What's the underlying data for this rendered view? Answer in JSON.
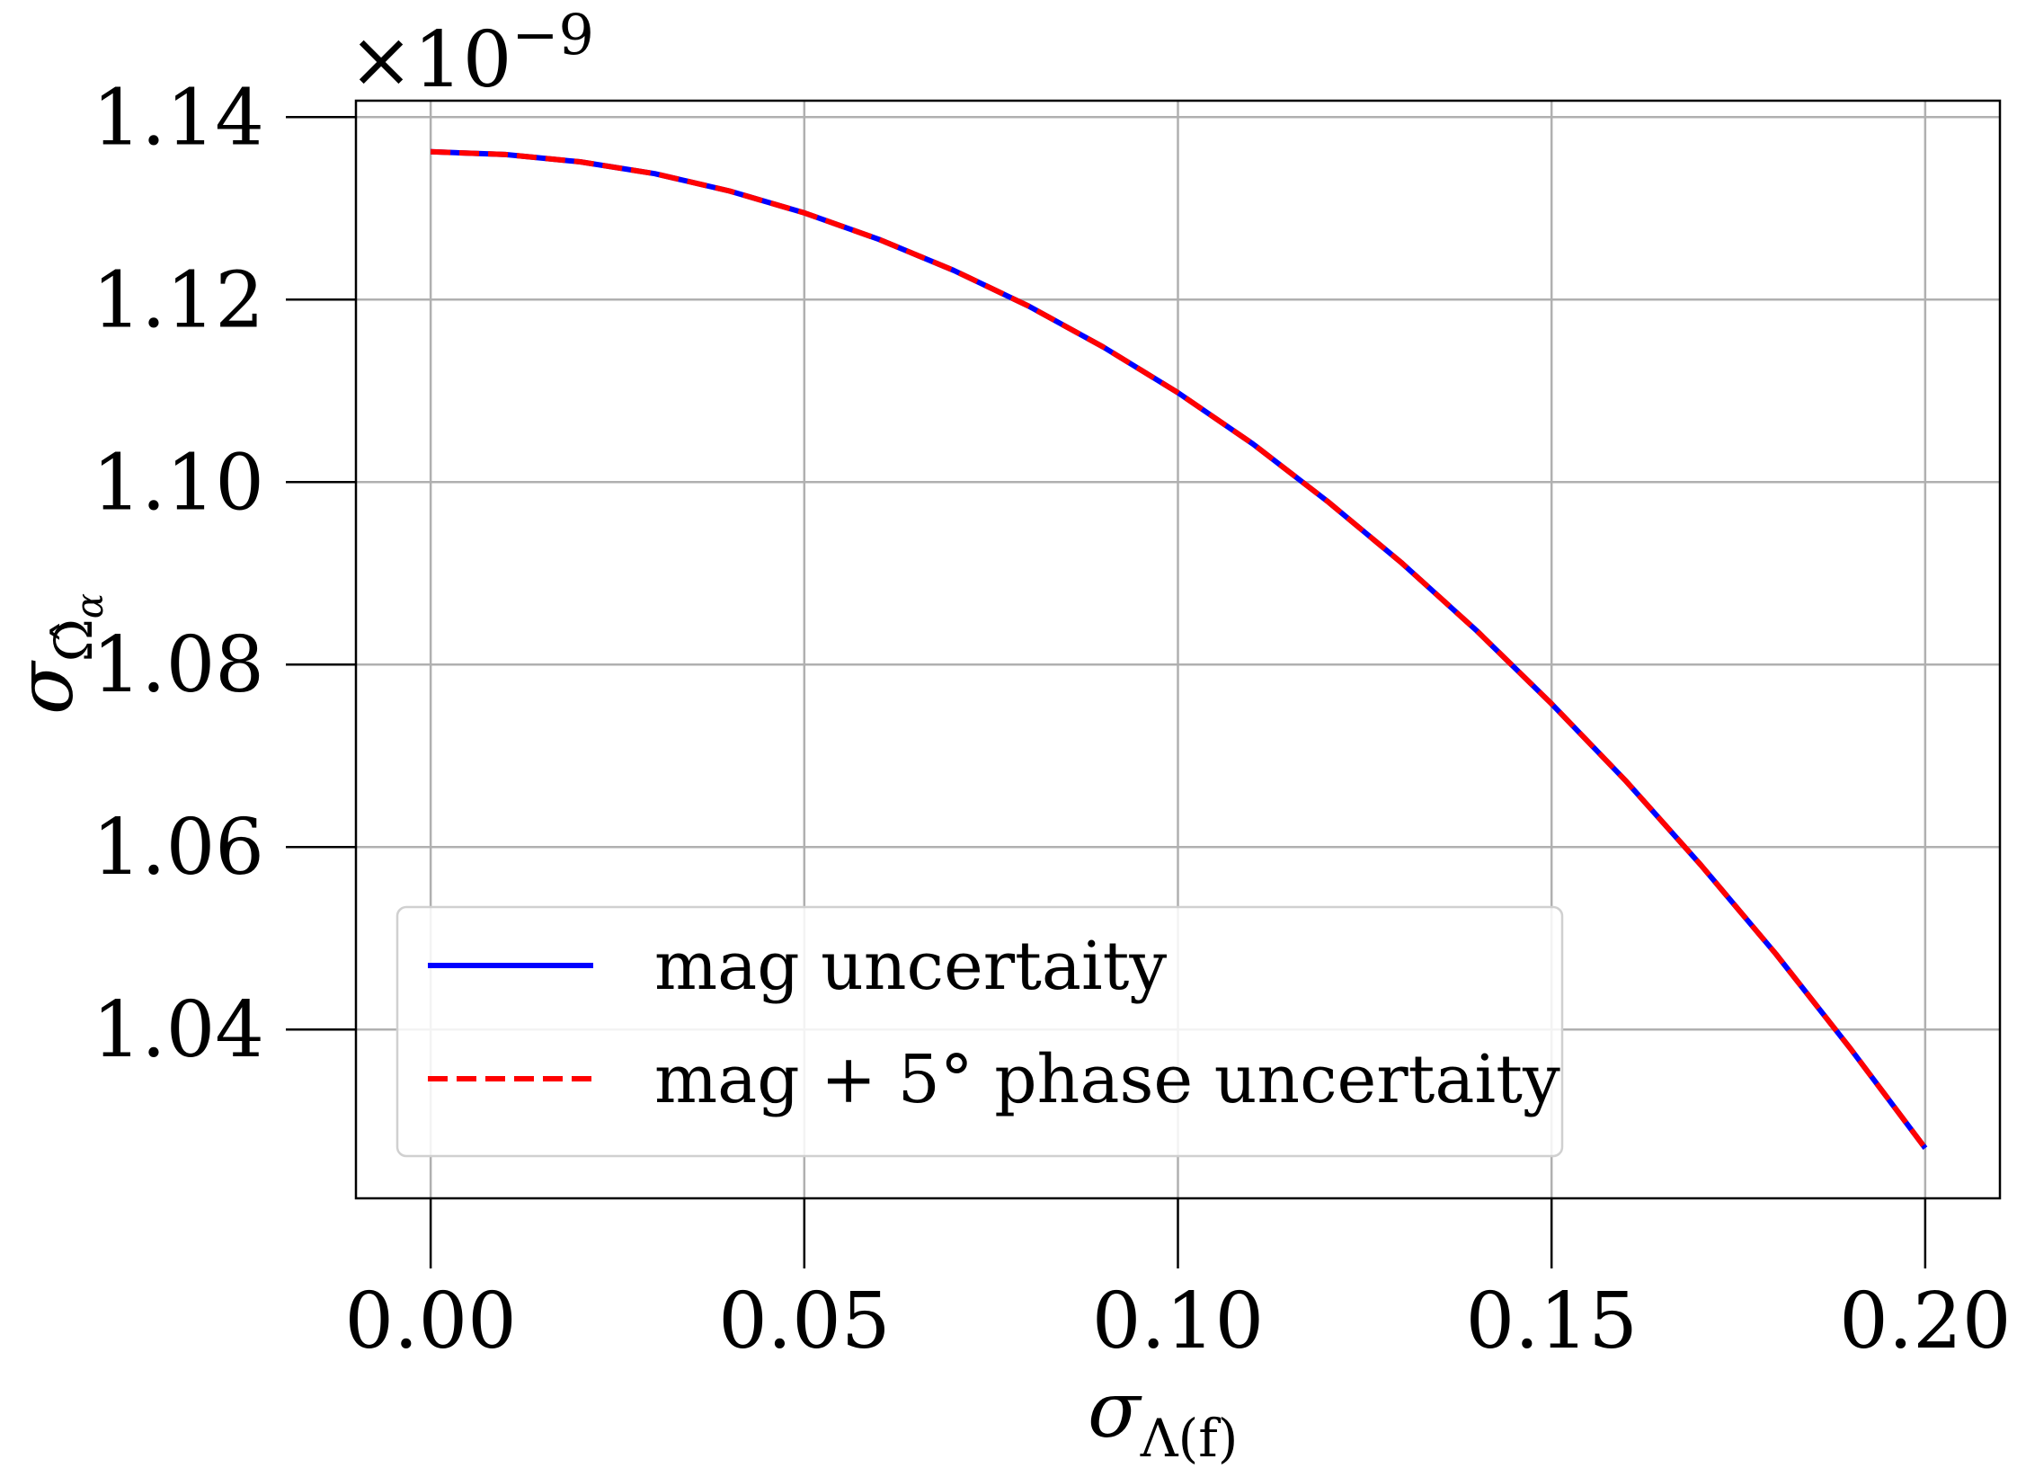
{
  "chart_data": {
    "type": "line",
    "x_multiplier_label": "×10",
    "y_exponent_label": "−9",
    "xlabel_main": "σ",
    "xlabel_sub": "Λ(f)",
    "ylabel_main": "σ",
    "ylabel_sub": "Ω̂",
    "ylabel_subsub": "α",
    "xlim": [
      -0.01,
      0.21
    ],
    "ylim": [
      1.0215,
      1.1418
    ],
    "x_ticks": [
      0.0,
      0.05,
      0.1,
      0.15,
      0.2
    ],
    "x_tick_labels": [
      "0.00",
      "0.05",
      "0.10",
      "0.15",
      "0.20"
    ],
    "y_ticks": [
      1.04,
      1.06,
      1.08,
      1.1,
      1.12,
      1.14
    ],
    "y_tick_labels": [
      "1.04",
      "1.06",
      "1.08",
      "1.10",
      "1.12",
      "1.14"
    ],
    "grid": true,
    "legend_position": "lower-left",
    "x": [
      0.0,
      0.01,
      0.02,
      0.03,
      0.04,
      0.05,
      0.06,
      0.07,
      0.08,
      0.09,
      0.1,
      0.11,
      0.12,
      0.13,
      0.14,
      0.15,
      0.16,
      0.17,
      0.18,
      0.19,
      0.2
    ],
    "series": [
      {
        "name": "mag uncertaity",
        "color": "#0000ff",
        "style": "solid",
        "values": [
          1.1362,
          1.1359,
          1.1351,
          1.1338,
          1.1319,
          1.1295,
          1.1266,
          1.1232,
          1.1193,
          1.1148,
          1.1098,
          1.1042,
          1.0979,
          1.0911,
          1.0837,
          1.0757,
          1.0672,
          1.058,
          1.0483,
          1.0379,
          1.027
        ]
      },
      {
        "name": "mag + 5° phase uncertaity",
        "color": "#ff0000",
        "style": "dashed",
        "values": [
          1.1362,
          1.1359,
          1.1351,
          1.1338,
          1.1319,
          1.1295,
          1.1266,
          1.1232,
          1.1193,
          1.1148,
          1.1098,
          1.1042,
          1.0979,
          1.0911,
          1.0837,
          1.0757,
          1.0672,
          1.058,
          1.0483,
          1.0379,
          1.027
        ]
      }
    ]
  }
}
